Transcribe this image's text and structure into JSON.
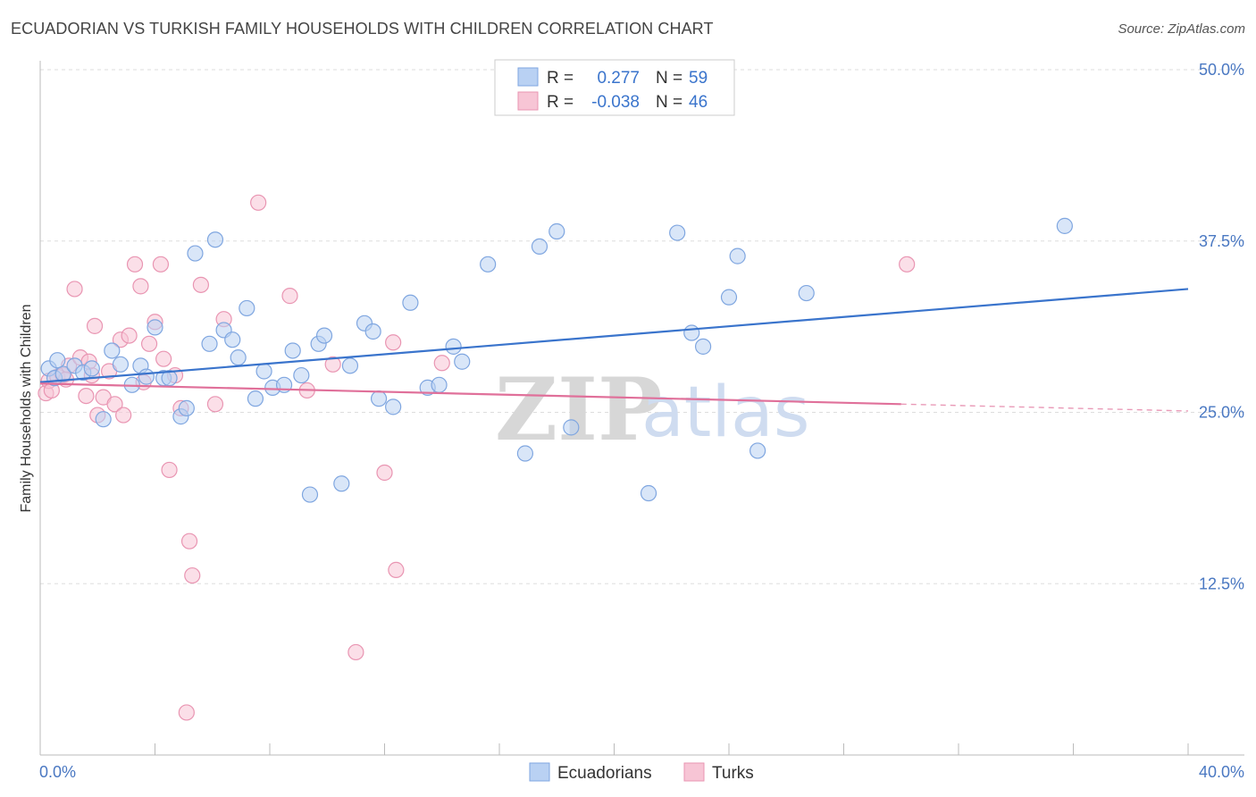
{
  "header": {
    "title": "ECUADORIAN VS TURKISH FAMILY HOUSEHOLDS WITH CHILDREN CORRELATION CHART",
    "source": "Source: ZipAtlas.com"
  },
  "watermark": {
    "zip": "ZIP",
    "atlas": "atlas"
  },
  "colors": {
    "ecuadorians_fill": "#b9d1f3",
    "ecuadorians_stroke": "#7fa6e0",
    "ecuadorians_line": "#3a74cc",
    "turks_fill": "#f7c5d5",
    "turks_stroke": "#e995b2",
    "turks_line": "#e0709a",
    "value_text": "#3a74cc"
  },
  "legend": {
    "rows": [
      {
        "r_label": "R =",
        "r_value": "0.277",
        "n_label": "N =",
        "n_value": "59"
      },
      {
        "r_label": "R =",
        "r_value": "-0.038",
        "n_label": "N =",
        "n_value": "46"
      }
    ]
  },
  "chart_data": {
    "type": "scatter",
    "title": "ECUADORIAN VS TURKISH FAMILY HOUSEHOLDS WITH CHILDREN CORRELATION CHART",
    "xlabel": "",
    "ylabel": "Family Households with Children",
    "xlim": [
      0,
      40
    ],
    "ylim": [
      0,
      50
    ],
    "x_tick_labels": [
      "0.0%",
      "40.0%"
    ],
    "y_ticks": [
      12.5,
      25.0,
      37.5,
      50.0
    ],
    "y_tick_labels": [
      "12.5%",
      "25.0%",
      "37.5%",
      "50.0%"
    ],
    "grid": "horizontal dashed",
    "series": [
      {
        "name": "Ecuadorians",
        "r": 0.277,
        "n": 59,
        "trend": {
          "x0": 0,
          "y0": 27.2,
          "x1": 40,
          "y1": 34.0
        },
        "points": [
          [
            0.3,
            28.2
          ],
          [
            0.5,
            27.5
          ],
          [
            0.8,
            27.8
          ],
          [
            1.2,
            28.4
          ],
          [
            1.5,
            27.9
          ],
          [
            1.8,
            28.2
          ],
          [
            2.2,
            24.5
          ],
          [
            2.5,
            29.5
          ],
          [
            2.8,
            28.5
          ],
          [
            3.2,
            27.0
          ],
          [
            3.5,
            28.4
          ],
          [
            3.7,
            27.6
          ],
          [
            4.0,
            31.2
          ],
          [
            4.3,
            27.5
          ],
          [
            4.5,
            27.5
          ],
          [
            4.9,
            24.7
          ],
          [
            5.1,
            25.3
          ],
          [
            5.4,
            36.6
          ],
          [
            5.9,
            30.0
          ],
          [
            6.1,
            37.6
          ],
          [
            6.4,
            31.0
          ],
          [
            6.7,
            30.3
          ],
          [
            6.9,
            29.0
          ],
          [
            7.2,
            32.6
          ],
          [
            7.5,
            26.0
          ],
          [
            7.8,
            28.0
          ],
          [
            8.1,
            26.8
          ],
          [
            8.5,
            27.0
          ],
          [
            8.8,
            29.5
          ],
          [
            9.1,
            27.7
          ],
          [
            9.4,
            19.0
          ],
          [
            9.7,
            30.0
          ],
          [
            9.9,
            30.6
          ],
          [
            10.5,
            19.8
          ],
          [
            10.8,
            28.4
          ],
          [
            11.3,
            31.5
          ],
          [
            11.6,
            30.9
          ],
          [
            11.8,
            26.0
          ],
          [
            12.3,
            25.4
          ],
          [
            12.9,
            33.0
          ],
          [
            13.5,
            26.8
          ],
          [
            13.9,
            27.0
          ],
          [
            14.4,
            29.8
          ],
          [
            14.7,
            28.7
          ],
          [
            15.6,
            35.8
          ],
          [
            16.9,
            22.0
          ],
          [
            17.4,
            37.1
          ],
          [
            18.0,
            38.2
          ],
          [
            18.5,
            23.9
          ],
          [
            21.2,
            19.1
          ],
          [
            22.2,
            38.1
          ],
          [
            22.7,
            30.8
          ],
          [
            23.1,
            29.8
          ],
          [
            24.0,
            33.4
          ],
          [
            24.3,
            36.4
          ],
          [
            25.0,
            22.2
          ],
          [
            26.7,
            33.7
          ],
          [
            35.7,
            38.6
          ],
          [
            0.6,
            28.8
          ]
        ]
      },
      {
        "name": "Turks",
        "r": -0.038,
        "n": 46,
        "trend": {
          "x0": 0,
          "y0": 27.1,
          "x1": 30.0,
          "y1": 25.6
        },
        "trend_dashed": {
          "x0": 30.0,
          "y0": 25.6,
          "x1": 40,
          "y1": 25.1
        },
        "points": [
          [
            0.2,
            26.4
          ],
          [
            0.3,
            27.3
          ],
          [
            0.6,
            27.6
          ],
          [
            0.8,
            27.7
          ],
          [
            1.0,
            28.4
          ],
          [
            1.2,
            34.0
          ],
          [
            1.4,
            29.0
          ],
          [
            1.6,
            26.2
          ],
          [
            1.8,
            27.7
          ],
          [
            1.9,
            31.3
          ],
          [
            2.0,
            24.8
          ],
          [
            2.2,
            26.1
          ],
          [
            2.4,
            28.0
          ],
          [
            2.6,
            25.6
          ],
          [
            2.8,
            30.3
          ],
          [
            2.9,
            24.8
          ],
          [
            3.1,
            30.6
          ],
          [
            3.3,
            35.8
          ],
          [
            3.5,
            34.2
          ],
          [
            3.6,
            27.2
          ],
          [
            3.8,
            30.0
          ],
          [
            4.0,
            31.6
          ],
          [
            4.2,
            35.8
          ],
          [
            4.3,
            28.9
          ],
          [
            4.5,
            20.8
          ],
          [
            4.7,
            27.7
          ],
          [
            4.9,
            25.3
          ],
          [
            5.2,
            15.6
          ],
          [
            5.3,
            13.1
          ],
          [
            5.6,
            34.3
          ],
          [
            6.1,
            25.6
          ],
          [
            6.4,
            31.8
          ],
          [
            7.6,
            40.3
          ],
          [
            8.7,
            33.5
          ],
          [
            9.3,
            26.6
          ],
          [
            10.2,
            28.5
          ],
          [
            11.0,
            7.5
          ],
          [
            12.0,
            20.6
          ],
          [
            12.3,
            30.1
          ],
          [
            12.4,
            13.5
          ],
          [
            14.0,
            28.6
          ],
          [
            30.2,
            35.8
          ],
          [
            5.1,
            3.1
          ],
          [
            1.7,
            28.7
          ],
          [
            0.4,
            26.6
          ],
          [
            0.9,
            27.4
          ]
        ]
      }
    ]
  }
}
